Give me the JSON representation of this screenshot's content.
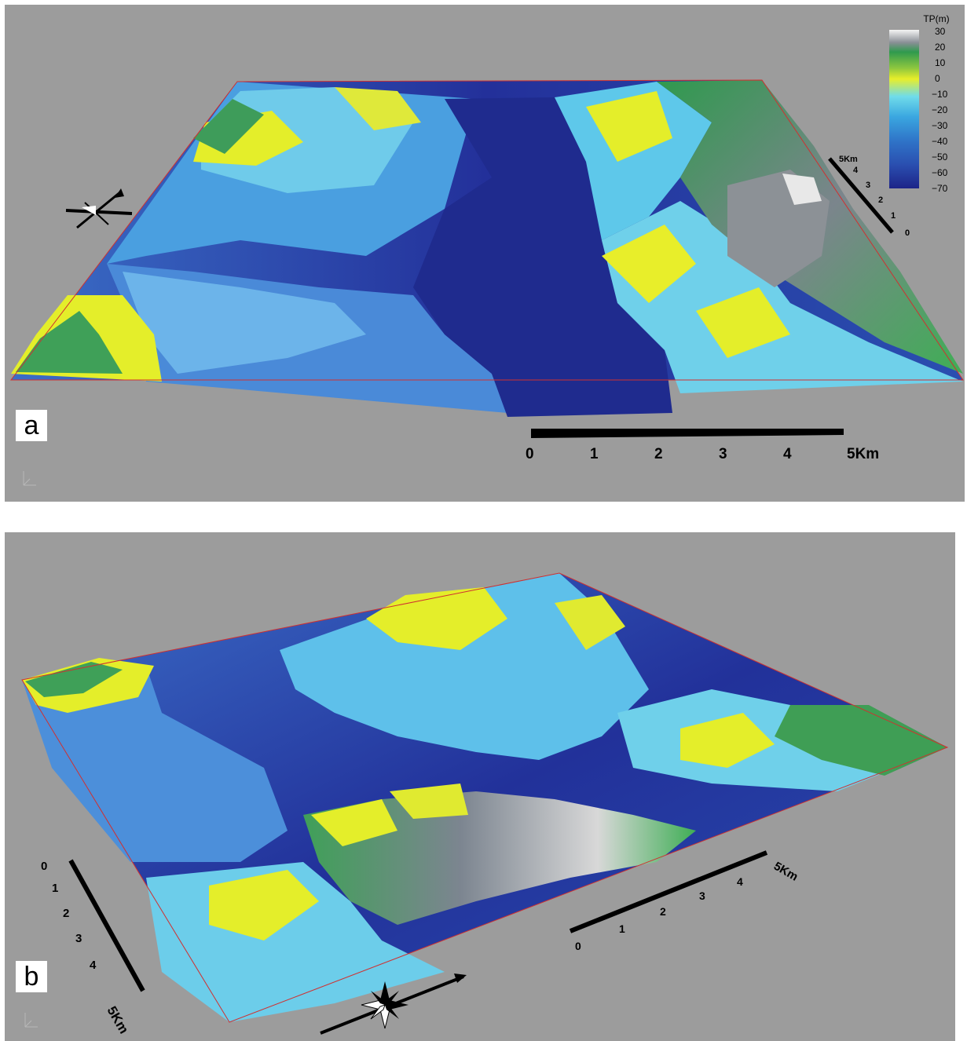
{
  "panels": [
    {
      "label": "a",
      "scale_x": {
        "ticks": [
          "0",
          "1",
          "2",
          "3",
          "4"
        ],
        "end_label": "5Km"
      },
      "scale_z": {
        "ticks": [
          "0",
          "1",
          "2",
          "3",
          "4"
        ],
        "end_label": "5Km"
      }
    },
    {
      "label": "b",
      "scale_x": {
        "ticks": [
          "0",
          "1",
          "2",
          "3",
          "4"
        ],
        "end_label": "5Km"
      },
      "scale_z": {
        "ticks": [
          "0",
          "1",
          "2",
          "3",
          "4"
        ],
        "end_label": "5Km"
      }
    }
  ],
  "legend": {
    "title": "TP(m)",
    "ticks": [
      "30",
      "20",
      "10",
      "0",
      "−10",
      "−20",
      "−30",
      "−40",
      "−50",
      "−60",
      "−70"
    ],
    "colors": [
      "#f2f2f2",
      "#7f8a96",
      "#2f9a4e",
      "#8cc63f",
      "#e4ee2a",
      "#5fd4ea",
      "#3aa6e0",
      "#2f74c8",
      "#2a4fb0",
      "#24339a",
      "#1d2488"
    ]
  },
  "icons": {
    "compass": "compass-rose-icon",
    "axis_triad": "axis-triad-icon"
  }
}
